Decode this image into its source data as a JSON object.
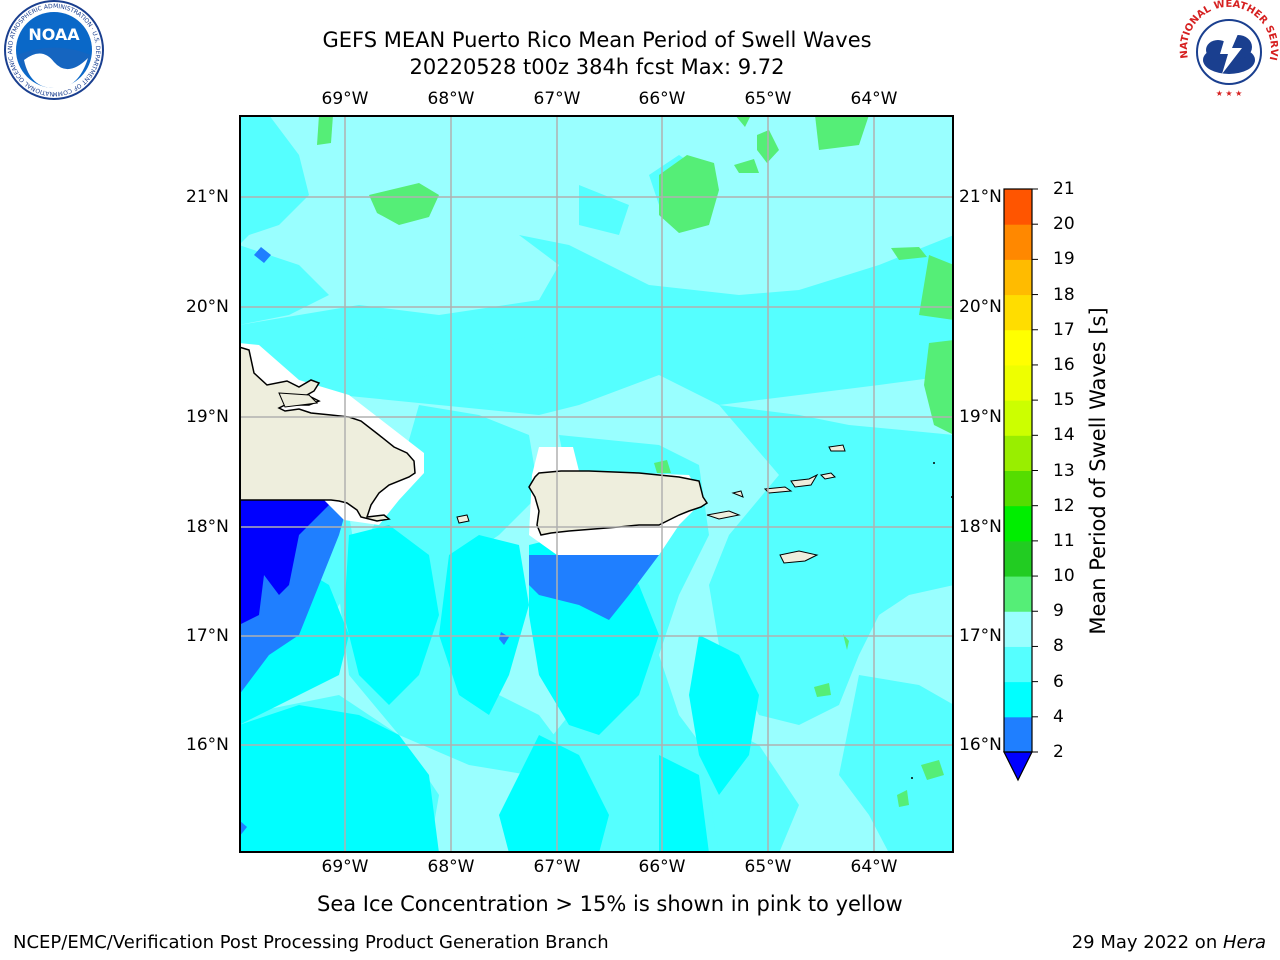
{
  "header": {
    "title_line1": "GEFS MEAN Puerto Rico Mean Period of Swell Waves",
    "title_line2": "20220528 t00z 384h fcst   Max: 9.72"
  },
  "logos": {
    "noaa_text": "NOAA",
    "noaa_ring_text": "NATIONAL OCEANIC AND ATMOSPHERIC ADMINISTRATION · U.S. DEPARTMENT OF COMMERCE",
    "nws_ring_text": "NATIONAL WEATHER SERVICE"
  },
  "map": {
    "lon_labels": [
      "69°W",
      "68°W",
      "67°W",
      "66°W",
      "65°W",
      "64°W"
    ],
    "lat_labels": [
      "21°N",
      "20°N",
      "19°N",
      "18°N",
      "17°N",
      "16°N"
    ],
    "colors": {
      "ocean_light": "#99ffff",
      "ocean_mid": "#55ffff",
      "ocean_deep": "#00ffff",
      "swell_low": "#1f7fff",
      "swell_lowest": "#0000ff",
      "swell_green": "#55ee77",
      "land": "#eeeedd",
      "ice_mask": "#ffffff",
      "grid": "#b0b0b0"
    }
  },
  "colorbar": {
    "label": "Mean Period of Swell Waves [s]",
    "ticks": [
      "2",
      "4",
      "6",
      "8",
      "9",
      "10",
      "11",
      "12",
      "13",
      "14",
      "15",
      "16",
      "17",
      "18",
      "19",
      "20",
      "21"
    ],
    "colors": [
      "#1f7fff",
      "#00ffff",
      "#55ffff",
      "#99ffff",
      "#55ee77",
      "#22cc22",
      "#00ee00",
      "#55dd00",
      "#99ee00",
      "#ccff00",
      "#eeff00",
      "#ffff00",
      "#ffdd00",
      "#ffbb00",
      "#ff8800",
      "#ff5500",
      "#ff2200",
      "#ff0000"
    ],
    "extend_color": "#0000ff"
  },
  "footer": {
    "ice_note": "Sea Ice Concentration > 15% is shown in pink to yellow",
    "left": "NCEP/EMC/Verification Post Processing Product Generation Branch",
    "date": "29 May 2022 on ",
    "machine": "Hera"
  }
}
